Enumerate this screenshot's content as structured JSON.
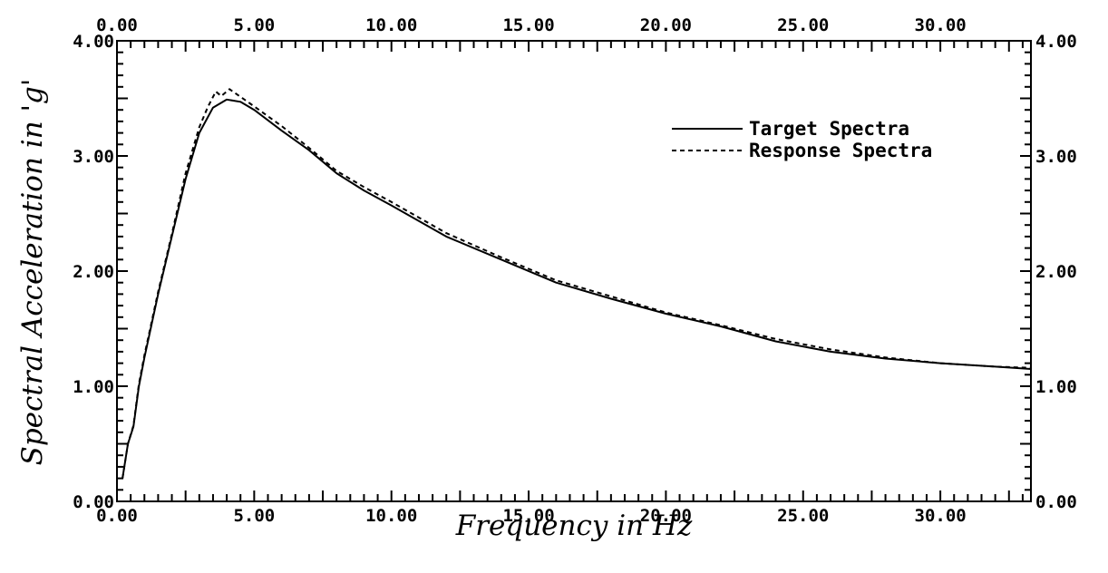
{
  "chart_data": {
    "type": "line",
    "title": "",
    "xlabel": "Frequency in Hz",
    "ylabel": "Spectral Acceleration in 'g'",
    "xlim": [
      0,
      33.3
    ],
    "ylim": [
      0,
      4
    ],
    "x_ticks": [
      {
        "value": 0,
        "label": "0.00"
      },
      {
        "value": 5,
        "label": "5.00"
      },
      {
        "value": 10,
        "label": "10.00"
      },
      {
        "value": 15,
        "label": "15.00"
      },
      {
        "value": 20,
        "label": "20.00"
      },
      {
        "value": 25,
        "label": "25.00"
      },
      {
        "value": 30,
        "label": "30.00"
      }
    ],
    "y_ticks": [
      {
        "value": 0,
        "label": "0.00"
      },
      {
        "value": 1,
        "label": "1.00"
      },
      {
        "value": 2,
        "label": "2.00"
      },
      {
        "value": 3,
        "label": "3.00"
      },
      {
        "value": 4,
        "label": "4.00"
      }
    ],
    "grid": false,
    "legend_position": "top-right",
    "series": [
      {
        "name": "Target Spectra",
        "style": "solid",
        "points": [
          [
            0.2,
            0.2
          ],
          [
            0.4,
            0.5
          ],
          [
            0.6,
            0.65
          ],
          [
            0.8,
            1.0
          ],
          [
            1.0,
            1.25
          ],
          [
            1.5,
            1.8
          ],
          [
            2.0,
            2.3
          ],
          [
            2.5,
            2.8
          ],
          [
            3.0,
            3.2
          ],
          [
            3.5,
            3.42
          ],
          [
            4.0,
            3.49
          ],
          [
            4.5,
            3.47
          ],
          [
            5.0,
            3.4
          ],
          [
            6.0,
            3.22
          ],
          [
            7.0,
            3.05
          ],
          [
            8.0,
            2.85
          ],
          [
            9.0,
            2.7
          ],
          [
            10.0,
            2.57
          ],
          [
            12.0,
            2.3
          ],
          [
            14.0,
            2.1
          ],
          [
            16.0,
            1.9
          ],
          [
            18.0,
            1.76
          ],
          [
            20.0,
            1.63
          ],
          [
            22.0,
            1.52
          ],
          [
            24.0,
            1.39
          ],
          [
            26.0,
            1.3
          ],
          [
            28.0,
            1.24
          ],
          [
            30.0,
            1.2
          ],
          [
            32.0,
            1.17
          ],
          [
            33.3,
            1.15
          ]
        ]
      },
      {
        "name": "Response Spectra",
        "style": "dashed",
        "points": [
          [
            0.2,
            0.2
          ],
          [
            0.4,
            0.5
          ],
          [
            0.6,
            0.66
          ],
          [
            0.8,
            1.02
          ],
          [
            1.0,
            1.27
          ],
          [
            1.5,
            1.82
          ],
          [
            2.0,
            2.32
          ],
          [
            2.5,
            2.85
          ],
          [
            3.0,
            3.25
          ],
          [
            3.3,
            3.42
          ],
          [
            3.6,
            3.56
          ],
          [
            3.8,
            3.52
          ],
          [
            4.1,
            3.58
          ],
          [
            4.4,
            3.53
          ],
          [
            5.0,
            3.43
          ],
          [
            6.0,
            3.26
          ],
          [
            7.0,
            3.07
          ],
          [
            8.0,
            2.87
          ],
          [
            9.0,
            2.73
          ],
          [
            10.0,
            2.6
          ],
          [
            12.0,
            2.33
          ],
          [
            14.0,
            2.12
          ],
          [
            16.0,
            1.92
          ],
          [
            18.0,
            1.78
          ],
          [
            20.0,
            1.64
          ],
          [
            22.0,
            1.53
          ],
          [
            24.0,
            1.41
          ],
          [
            26.0,
            1.32
          ],
          [
            28.0,
            1.25
          ],
          [
            30.0,
            1.2
          ],
          [
            32.0,
            1.17
          ],
          [
            33.3,
            1.16
          ]
        ]
      }
    ]
  }
}
